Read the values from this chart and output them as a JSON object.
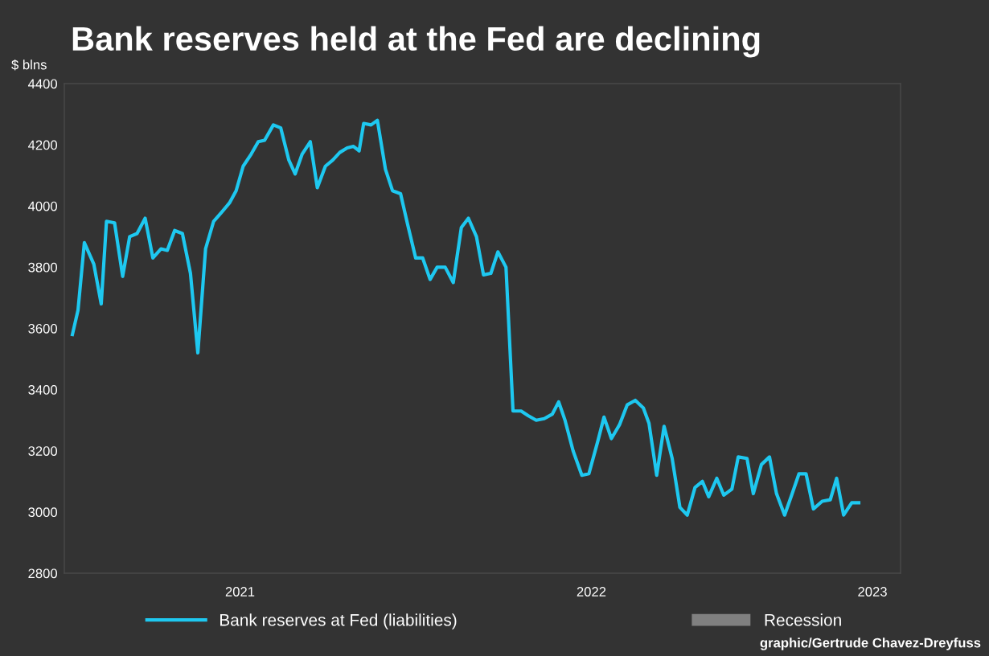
{
  "chart_data": {
    "type": "line",
    "title": "Bank reserves held at the Fed are declining",
    "ylabel": "$ blns",
    "annotations": [
      "graphic/Gertrude Chavez-Dreyfuss"
    ],
    "series": [
      {
        "name": "Bank reserves at Fed (liabilities)",
        "color": "#1ec8f0",
        "x": [
          2021.023,
          2021.039,
          2021.057,
          2021.084,
          2021.105,
          2021.12,
          2021.143,
          2021.166,
          2021.186,
          2021.207,
          2021.23,
          2021.252,
          2021.275,
          2021.293,
          2021.314,
          2021.336,
          2021.359,
          2021.38,
          2021.402,
          2021.425,
          2021.448,
          2021.47,
          2021.489,
          2021.509,
          2021.532,
          2021.552,
          2021.57,
          2021.595,
          2021.616,
          2021.639,
          2021.657,
          2021.677,
          2021.7,
          2021.72,
          2021.743,
          2021.764,
          2021.784,
          2021.805,
          2021.823,
          2021.839,
          2021.852,
          2021.873,
          2021.891,
          2021.914,
          2021.934,
          2021.957,
          2021.977,
          2022.0,
          2022.02,
          2022.041,
          2022.061,
          2022.084,
          2022.107,
          2022.13,
          2022.15,
          2022.173,
          2022.193,
          2022.214,
          2022.234,
          2022.257,
          2022.277,
          2022.3,
          2022.32,
          2022.343,
          2022.366,
          2022.389,
          2022.407,
          2022.425,
          2022.448,
          2022.473,
          2022.493,
          2022.518,
          2022.536,
          2022.557,
          2022.58,
          2022.602,
          2022.625,
          2022.648,
          2022.664,
          2022.686,
          2022.707,
          2022.73,
          2022.752,
          2022.773,
          2022.795,
          2022.816,
          2022.834,
          2022.857,
          2022.877,
          2022.9,
          2022.918,
          2022.943,
          2022.961,
          2022.984,
          2023.007,
          2023.027,
          2023.05,
          2023.07,
          2023.091,
          2023.111,
          2023.132,
          2023.157,
          2023.18,
          2023.198,
          2023.218,
          2023.241,
          2023.261
        ],
        "values": [
          3580,
          3660,
          3880,
          3810,
          3680,
          3950,
          3945,
          3770,
          3900,
          3910,
          3960,
          3830,
          3860,
          3855,
          3920,
          3910,
          3780,
          3520,
          3860,
          3950,
          3980,
          4010,
          4050,
          4130,
          4170,
          4210,
          4215,
          4265,
          4255,
          4150,
          4105,
          4170,
          4210,
          4060,
          4130,
          4150,
          4175,
          4190,
          4195,
          4180,
          4270,
          4265,
          4280,
          4120,
          4050,
          4040,
          3940,
          3830,
          3830,
          3760,
          3800,
          3800,
          3750,
          3930,
          3960,
          3900,
          3775,
          3780,
          3850,
          3800,
          3330,
          3330,
          3315,
          3300,
          3305,
          3320,
          3360,
          3300,
          3200,
          3120,
          3125,
          3230,
          3310,
          3240,
          3285,
          3350,
          3365,
          3340,
          3290,
          3120,
          3280,
          3175,
          3015,
          2990,
          3080,
          3100,
          3050,
          3110,
          3055,
          3075,
          3180,
          3175,
          3060,
          3155,
          3180,
          3060,
          2990,
          3055,
          3125,
          3125,
          3010,
          3035,
          3040,
          3110,
          2990,
          3030,
          3030
        ]
      },
      {
        "name": "Recession",
        "type": "area",
        "color": "#808080"
      }
    ],
    "xlim": [
      2021.0,
      2023.38
    ],
    "xticks": [
      {
        "value": 2021.5,
        "label": "2021"
      },
      {
        "value": 2022.5,
        "label": "2022"
      },
      {
        "value": 2023.3,
        "label": "2023"
      }
    ],
    "ylim": [
      2800,
      4400
    ],
    "yticks": [
      2800,
      3000,
      3200,
      3400,
      3600,
      3800,
      4000,
      4200,
      4400
    ],
    "legend": "bottom",
    "marker": "none",
    "line_style": "solid"
  }
}
